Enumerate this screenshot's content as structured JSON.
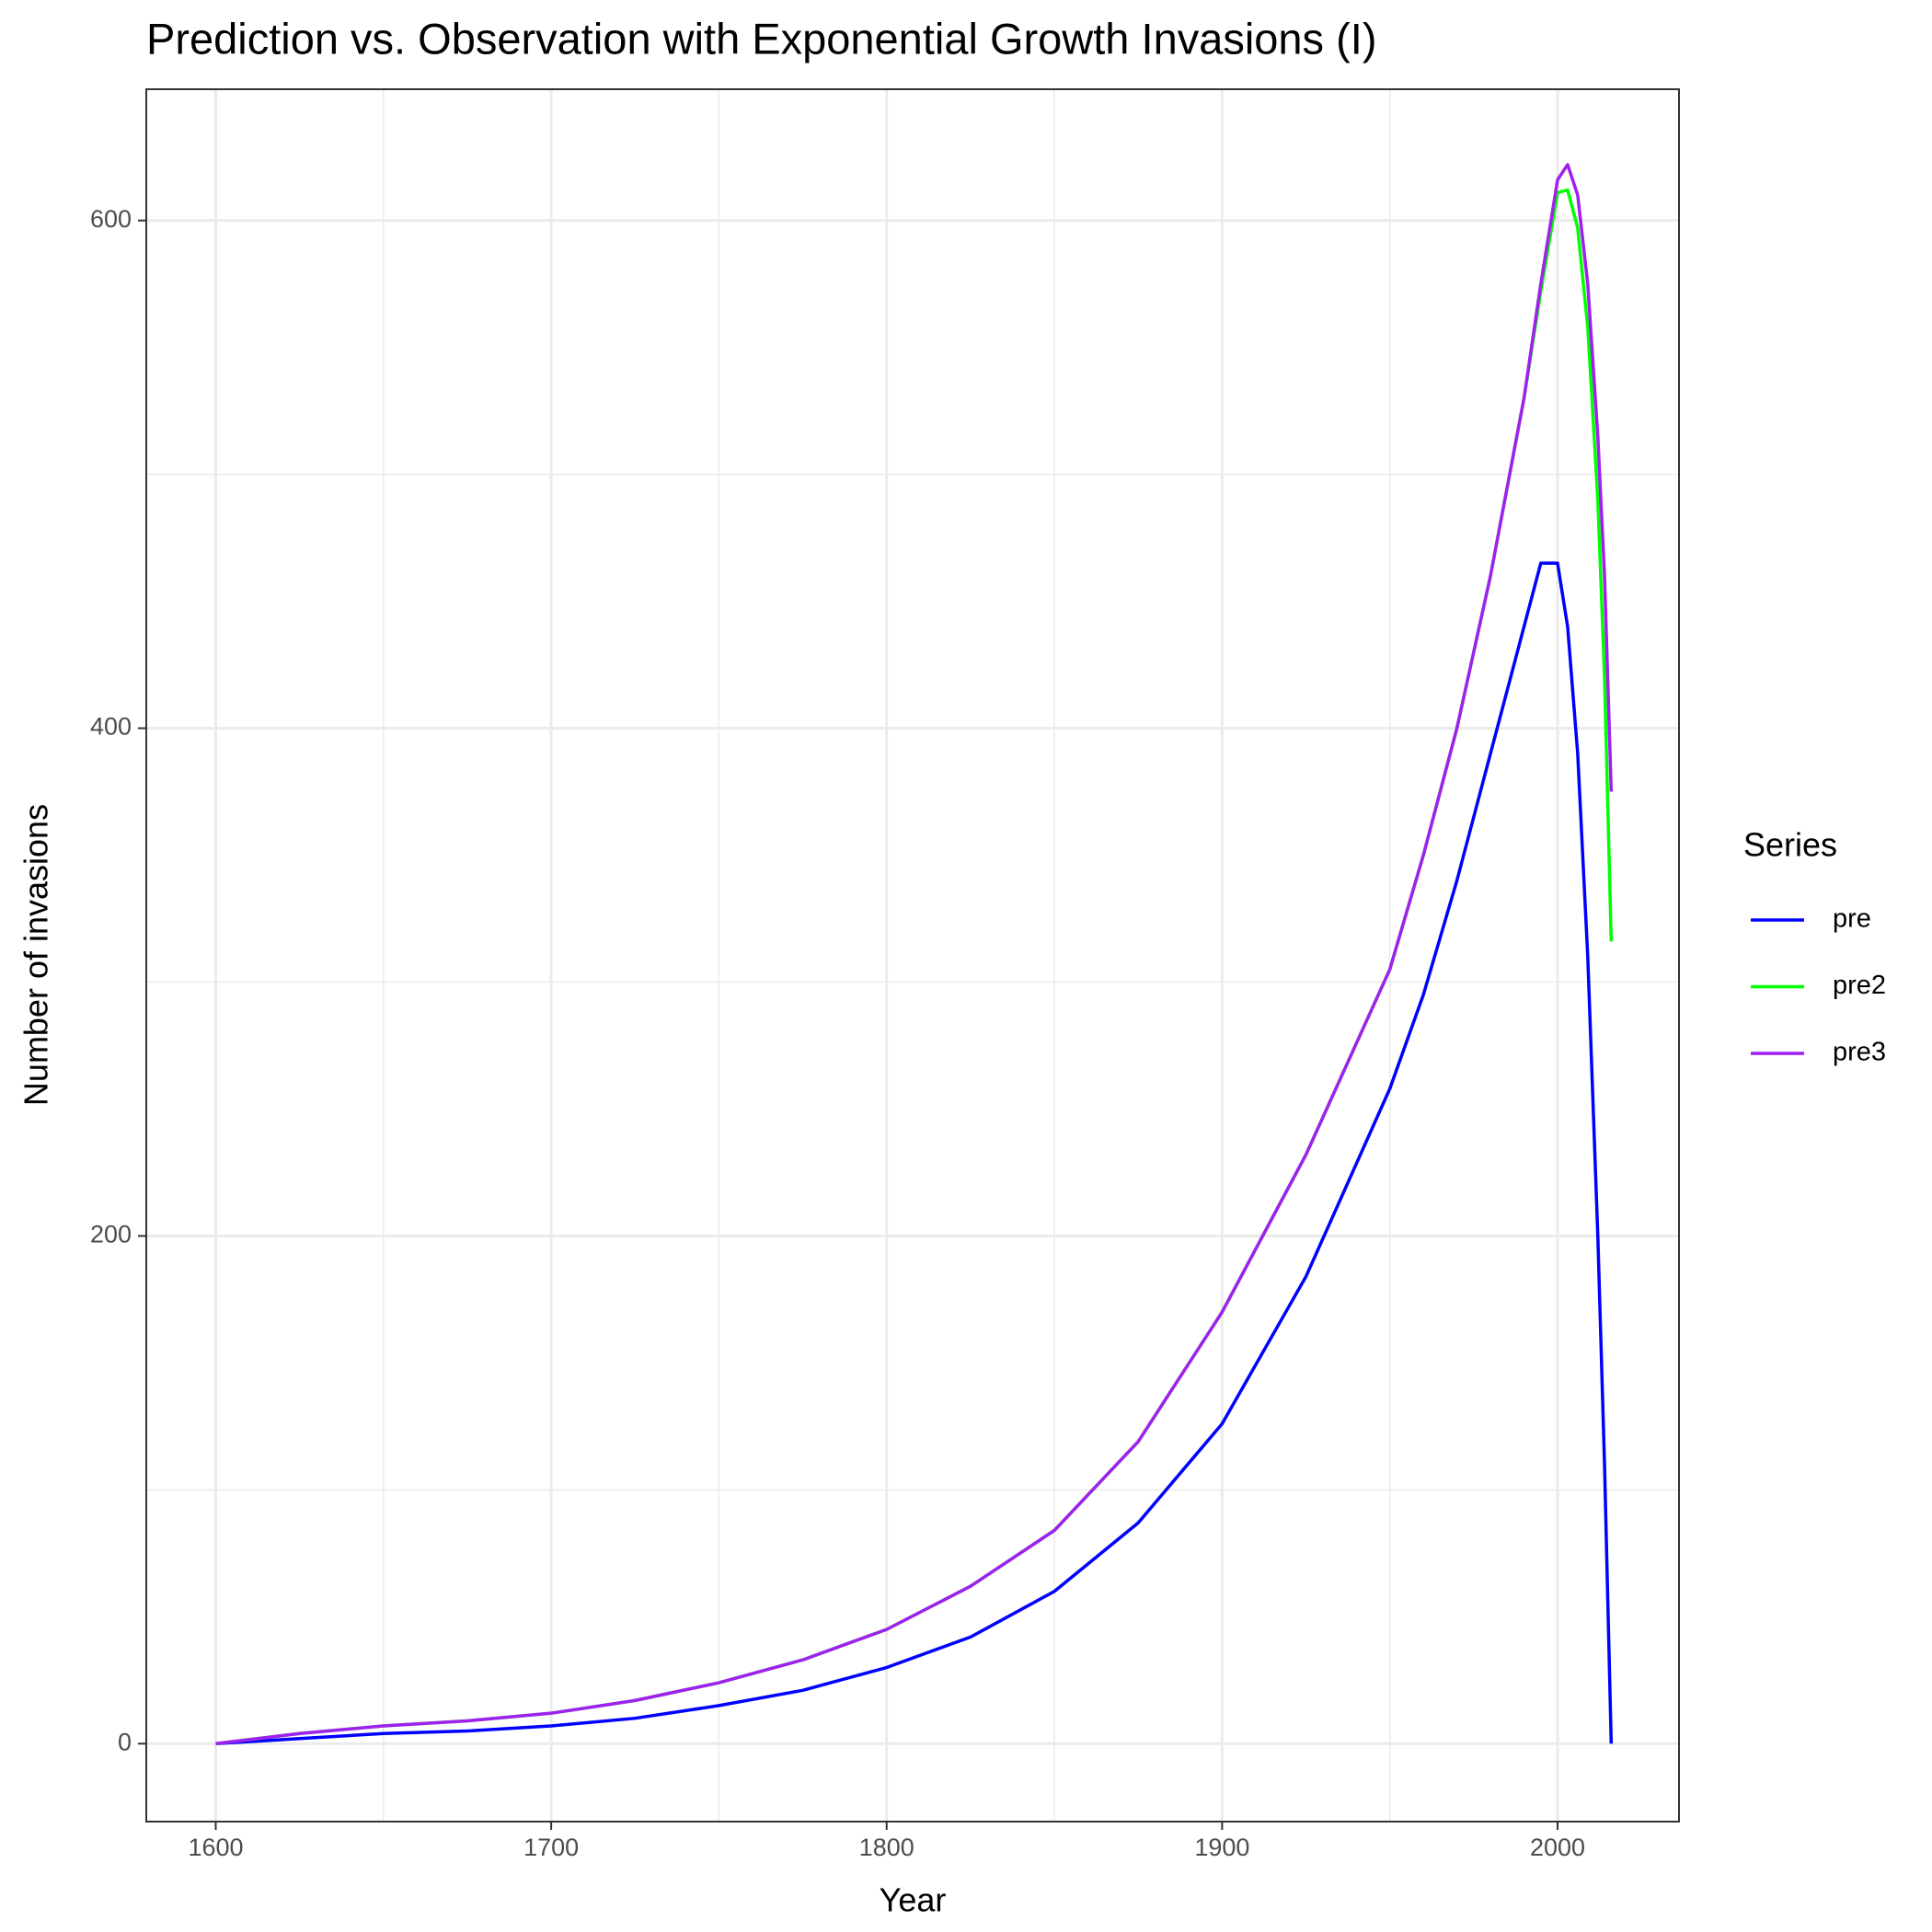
{
  "chart_data": {
    "type": "line",
    "title": "Prediction vs. Observation with Exponential Growth Invasions (I)",
    "x_label": "Year",
    "y_label": "Number of invasions",
    "legend_title": "Series",
    "legend": "right",
    "x": [
      1600,
      1625,
      1650,
      1675,
      1700,
      1725,
      1750,
      1775,
      1800,
      1825,
      1850,
      1875,
      1900,
      1925,
      1950,
      1960,
      1970,
      1980,
      1990,
      1995,
      2000,
      2003,
      2006,
      2009,
      2012,
      2014,
      2016
    ],
    "series": [
      {
        "name": "pre",
        "color": "#0000ff",
        "values": [
          0,
          2,
          4,
          5,
          7,
          10,
          15,
          21,
          30,
          42,
          60,
          87,
          126,
          184,
          258,
          295,
          340,
          390,
          440,
          465,
          465,
          440,
          390,
          310,
          200,
          110,
          0
        ]
      },
      {
        "name": "pre2",
        "color": "#00ff00",
        "values": [
          0,
          4,
          7,
          9,
          12,
          17,
          24,
          33,
          45,
          62,
          84,
          119,
          170,
          232,
          305,
          350,
          400,
          460,
          530,
          572,
          611,
          612,
          597,
          558,
          490,
          420,
          316
        ]
      },
      {
        "name": "pre3",
        "color": "#a020f0",
        "values": [
          0,
          4,
          7,
          9,
          12,
          17,
          24,
          33,
          45,
          62,
          84,
          119,
          170,
          232,
          305,
          350,
          400,
          460,
          530,
          575,
          616,
          622,
          610,
          575,
          515,
          460,
          375
        ]
      }
    ],
    "xlim": [
      1579.3,
      2036.2
    ],
    "ylim": [
      -30.7,
      651.7
    ],
    "xticks": [
      1600,
      1700,
      1800,
      1900,
      2000
    ],
    "yticks": [
      0,
      200,
      400,
      600
    ],
    "x_minor_grid": [
      1650,
      1750,
      1850,
      1950
    ],
    "y_minor_grid": [
      100,
      300,
      500
    ],
    "grid": true
  }
}
